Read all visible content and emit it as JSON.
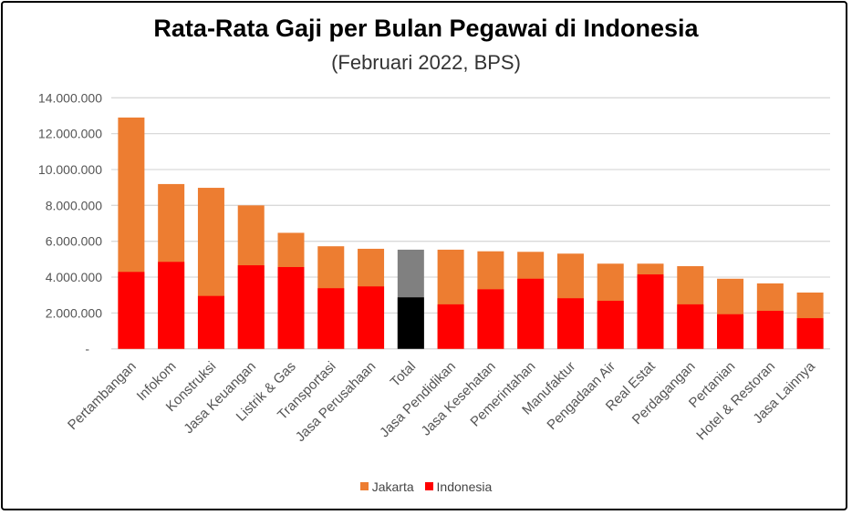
{
  "chart_data": {
    "type": "bar",
    "title": "Rata-Rata Gaji per Bulan Pegawai di Indonesia",
    "subtitle": "(Februari 2022, BPS)",
    "xlabel": "",
    "ylabel": "",
    "ylim": [
      0,
      14000000
    ],
    "yticks": [
      0,
      2000000,
      4000000,
      6000000,
      8000000,
      10000000,
      12000000,
      14000000
    ],
    "ytick_labels": [
      "-",
      "2.000.000",
      "4.000.000",
      "6.000.000",
      "8.000.000",
      "10.000.000",
      "12.000.000",
      "14.000.000"
    ],
    "grid": true,
    "legend": "bottom",
    "bar_mode": "overlap",
    "categories": [
      "Pertambangan",
      "Infokom",
      "Konstruksi",
      "Jasa Keuangan",
      "Listrik & Gas",
      "Transportasi",
      "Jasa Perusahaan",
      "Total",
      "Jasa Pendidikan",
      "Jasa Kesehatan",
      "Pemerintahan",
      "Manufaktur",
      "Pengadaan Air",
      "Real Estat",
      "Perdagangan",
      "Pertanian",
      "Hotel & Restoran",
      "Jasa Lainnya"
    ],
    "series": [
      {
        "name": "Jakarta",
        "color": "#ED7D31",
        "highlight_color": "#808080",
        "values": [
          12900000,
          9190000,
          8980000,
          8000000,
          6470000,
          5720000,
          5580000,
          5530000,
          5530000,
          5440000,
          5410000,
          5310000,
          4750000,
          4750000,
          4610000,
          3910000,
          3650000,
          3140000
        ]
      },
      {
        "name": "Indonesia",
        "color": "#FF0000",
        "highlight_color": "#000000",
        "values": [
          4290000,
          4850000,
          2950000,
          4660000,
          4560000,
          3380000,
          3480000,
          2870000,
          2480000,
          3320000,
          3910000,
          2820000,
          2680000,
          4150000,
          2480000,
          1930000,
          2120000,
          1710000
        ]
      }
    ],
    "highlight_category": "Total"
  }
}
